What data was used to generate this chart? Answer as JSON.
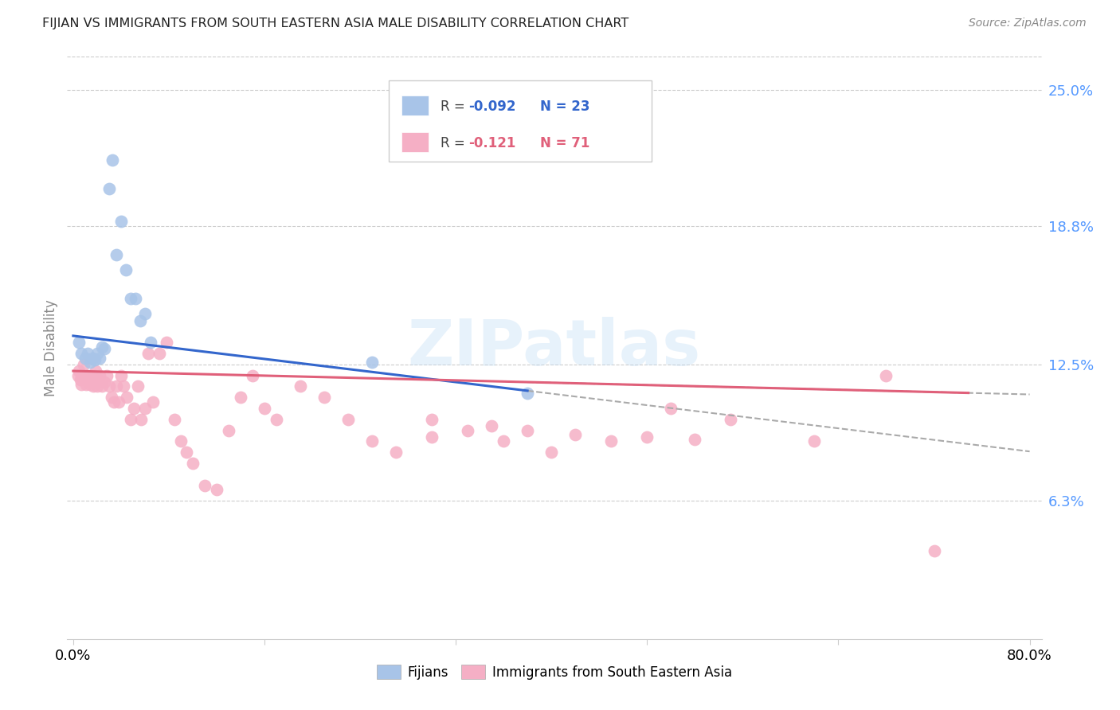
{
  "title": "FIJIAN VS IMMIGRANTS FROM SOUTH EASTERN ASIA MALE DISABILITY CORRELATION CHART",
  "source": "Source: ZipAtlas.com",
  "ylabel": "Male Disability",
  "y_ticks": [
    0.0,
    0.063,
    0.125,
    0.188,
    0.25
  ],
  "y_tick_labels": [
    "",
    "6.3%",
    "12.5%",
    "18.8%",
    "25.0%"
  ],
  "fijian_color": "#a8c4e8",
  "immigrant_color": "#f5afc5",
  "fijian_line_color": "#3366cc",
  "immigrant_line_color": "#e0607a",
  "dashed_line_color": "#aaaaaa",
  "watermark": "ZIPatlas",
  "fijians_x": [
    0.005,
    0.007,
    0.01,
    0.012,
    0.014,
    0.016,
    0.018,
    0.02,
    0.022,
    0.024,
    0.026,
    0.03,
    0.033,
    0.036,
    0.04,
    0.044,
    0.048,
    0.052,
    0.056,
    0.06,
    0.065,
    0.25,
    0.38
  ],
  "fijians_y": [
    0.135,
    0.13,
    0.128,
    0.13,
    0.126,
    0.128,
    0.127,
    0.13,
    0.128,
    0.133,
    0.132,
    0.205,
    0.218,
    0.175,
    0.19,
    0.168,
    0.155,
    0.155,
    0.145,
    0.148,
    0.135,
    0.126,
    0.112
  ],
  "immigrants_x": [
    0.004,
    0.005,
    0.006,
    0.007,
    0.008,
    0.009,
    0.01,
    0.011,
    0.012,
    0.013,
    0.014,
    0.015,
    0.016,
    0.017,
    0.018,
    0.019,
    0.02,
    0.021,
    0.022,
    0.024,
    0.026,
    0.028,
    0.03,
    0.032,
    0.034,
    0.036,
    0.038,
    0.04,
    0.042,
    0.045,
    0.048,
    0.051,
    0.054,
    0.057,
    0.06,
    0.063,
    0.067,
    0.072,
    0.078,
    0.085,
    0.09,
    0.095,
    0.1,
    0.11,
    0.12,
    0.13,
    0.14,
    0.15,
    0.16,
    0.17,
    0.19,
    0.21,
    0.23,
    0.25,
    0.27,
    0.3,
    0.33,
    0.36,
    0.4,
    0.45,
    0.5,
    0.55,
    0.62,
    0.68,
    0.72,
    0.3,
    0.35,
    0.38,
    0.42,
    0.48,
    0.52
  ],
  "immigrants_y": [
    0.12,
    0.122,
    0.118,
    0.116,
    0.12,
    0.125,
    0.118,
    0.116,
    0.12,
    0.118,
    0.116,
    0.12,
    0.118,
    0.115,
    0.12,
    0.122,
    0.115,
    0.118,
    0.12,
    0.115,
    0.117,
    0.12,
    0.115,
    0.11,
    0.108,
    0.115,
    0.108,
    0.12,
    0.115,
    0.11,
    0.1,
    0.105,
    0.115,
    0.1,
    0.105,
    0.13,
    0.108,
    0.13,
    0.135,
    0.1,
    0.09,
    0.085,
    0.08,
    0.07,
    0.068,
    0.095,
    0.11,
    0.12,
    0.105,
    0.1,
    0.115,
    0.11,
    0.1,
    0.09,
    0.085,
    0.092,
    0.095,
    0.09,
    0.085,
    0.09,
    0.105,
    0.1,
    0.09,
    0.12,
    0.04,
    0.1,
    0.097,
    0.095,
    0.093,
    0.092,
    0.091
  ]
}
